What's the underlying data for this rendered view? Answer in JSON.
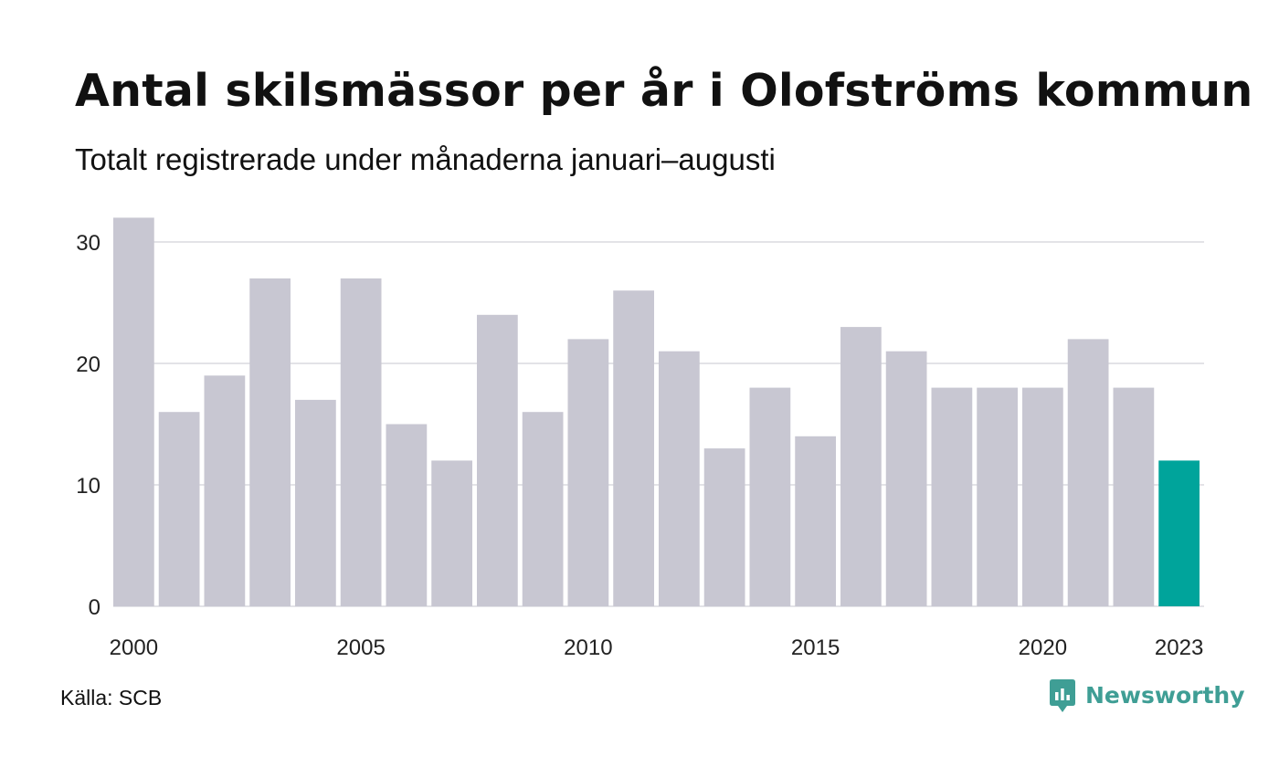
{
  "chart_data": {
    "type": "bar",
    "title": "Antal skilsmässor per år i Olofströms kommun",
    "subtitle": "Totalt registrerade under månaderna januari–augusti",
    "categories": [
      "2000",
      "2001",
      "2002",
      "2003",
      "2004",
      "2005",
      "2006",
      "2007",
      "2008",
      "2009",
      "2010",
      "2011",
      "2012",
      "2013",
      "2014",
      "2015",
      "2016",
      "2017",
      "2018",
      "2019",
      "2020",
      "2021",
      "2022",
      "2023"
    ],
    "values": [
      32,
      16,
      19,
      27,
      17,
      27,
      15,
      12,
      24,
      16,
      22,
      26,
      21,
      13,
      18,
      14,
      23,
      21,
      18,
      18,
      18,
      22,
      18,
      12
    ],
    "x_tick_labels": [
      "2000",
      "2005",
      "2010",
      "2015",
      "2020",
      "2023"
    ],
    "y_ticks": [
      0,
      10,
      20,
      30
    ],
    "ylim": [
      0,
      32
    ],
    "grid": true,
    "xlabel": "",
    "ylabel": "",
    "highlight_category": "2023",
    "colors": {
      "bar": "#c8c7d2",
      "highlight": "#00a49b",
      "grid": "#e3e3e7",
      "text": "#222222"
    }
  },
  "source": "Källa: SCB",
  "brand": {
    "name": "Newsworthy",
    "icon": "newsworthy-logo-icon",
    "color": "#3f9e95"
  }
}
